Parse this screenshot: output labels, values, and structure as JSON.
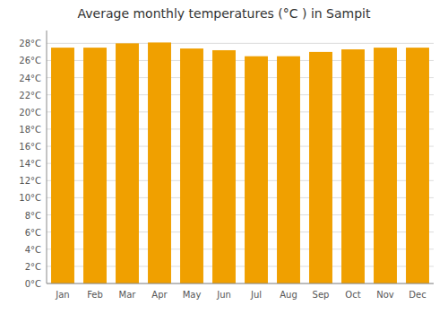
{
  "chart_data": {
    "type": "bar",
    "title": "Average monthly temperatures (°C ) in Sampit",
    "categories": [
      "Jan",
      "Feb",
      "Mar",
      "Apr",
      "May",
      "Jun",
      "Jul",
      "Aug",
      "Sep",
      "Oct",
      "Nov",
      "Dec"
    ],
    "values": [
      27.5,
      27.5,
      28.0,
      28.1,
      27.4,
      27.2,
      26.5,
      26.5,
      27.0,
      27.3,
      27.5,
      27.5
    ],
    "color": "#F0A000",
    "ylim": [
      0,
      29.5
    ],
    "yticks": [
      {
        "value": 0,
        "label": "0°C"
      },
      {
        "value": 2,
        "label": "2°C"
      },
      {
        "value": 4,
        "label": "4°C"
      },
      {
        "value": 6,
        "label": "6°C"
      },
      {
        "value": 8,
        "label": "8°C"
      },
      {
        "value": 10,
        "label": "10°C"
      },
      {
        "value": 12,
        "label": "12°C"
      },
      {
        "value": 14,
        "label": "14°C"
      },
      {
        "value": 16,
        "label": "16°C"
      },
      {
        "value": 18,
        "label": "18°C"
      },
      {
        "value": 20,
        "label": "20°C"
      },
      {
        "value": 22,
        "label": "22°C"
      },
      {
        "value": 24,
        "label": "24°C"
      },
      {
        "value": 26,
        "label": "26°C"
      },
      {
        "value": 28,
        "label": "28°C"
      }
    ],
    "grid": true
  }
}
